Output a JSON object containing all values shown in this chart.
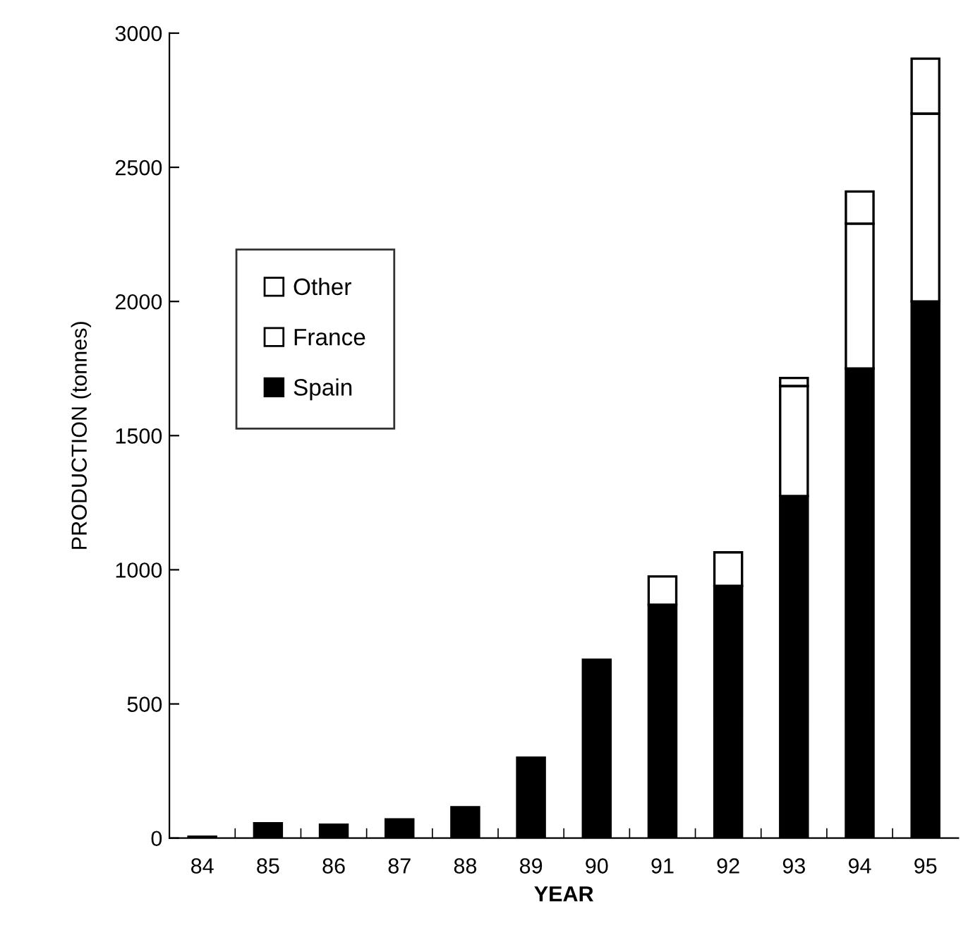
{
  "chart_data": {
    "type": "bar",
    "stacked": true,
    "xlabel": "YEAR",
    "ylabel": "PRODUCTION (tonnes)",
    "categories": [
      "84",
      "85",
      "86",
      "87",
      "88",
      "89",
      "90",
      "91",
      "92",
      "93",
      "94",
      "95"
    ],
    "series": [
      {
        "name": "Spain",
        "color": "#000000",
        "values": [
          5,
          55,
          50,
          70,
          115,
          300,
          665,
          870,
          940,
          1275,
          1750,
          2000
        ]
      },
      {
        "name": "France",
        "color": "#ffffff",
        "values": [
          null,
          null,
          null,
          null,
          null,
          null,
          null,
          null,
          null,
          410,
          540,
          700
        ]
      },
      {
        "name": "Other",
        "color": "#ffffff",
        "values": [
          null,
          null,
          null,
          null,
          null,
          null,
          null,
          105,
          125,
          30,
          120,
          205
        ]
      }
    ],
    "ylim": [
      0,
      3000
    ],
    "yticks": [
      0,
      500,
      1000,
      1500,
      2000,
      2500,
      3000
    ],
    "grid": false,
    "legend": "center left"
  }
}
